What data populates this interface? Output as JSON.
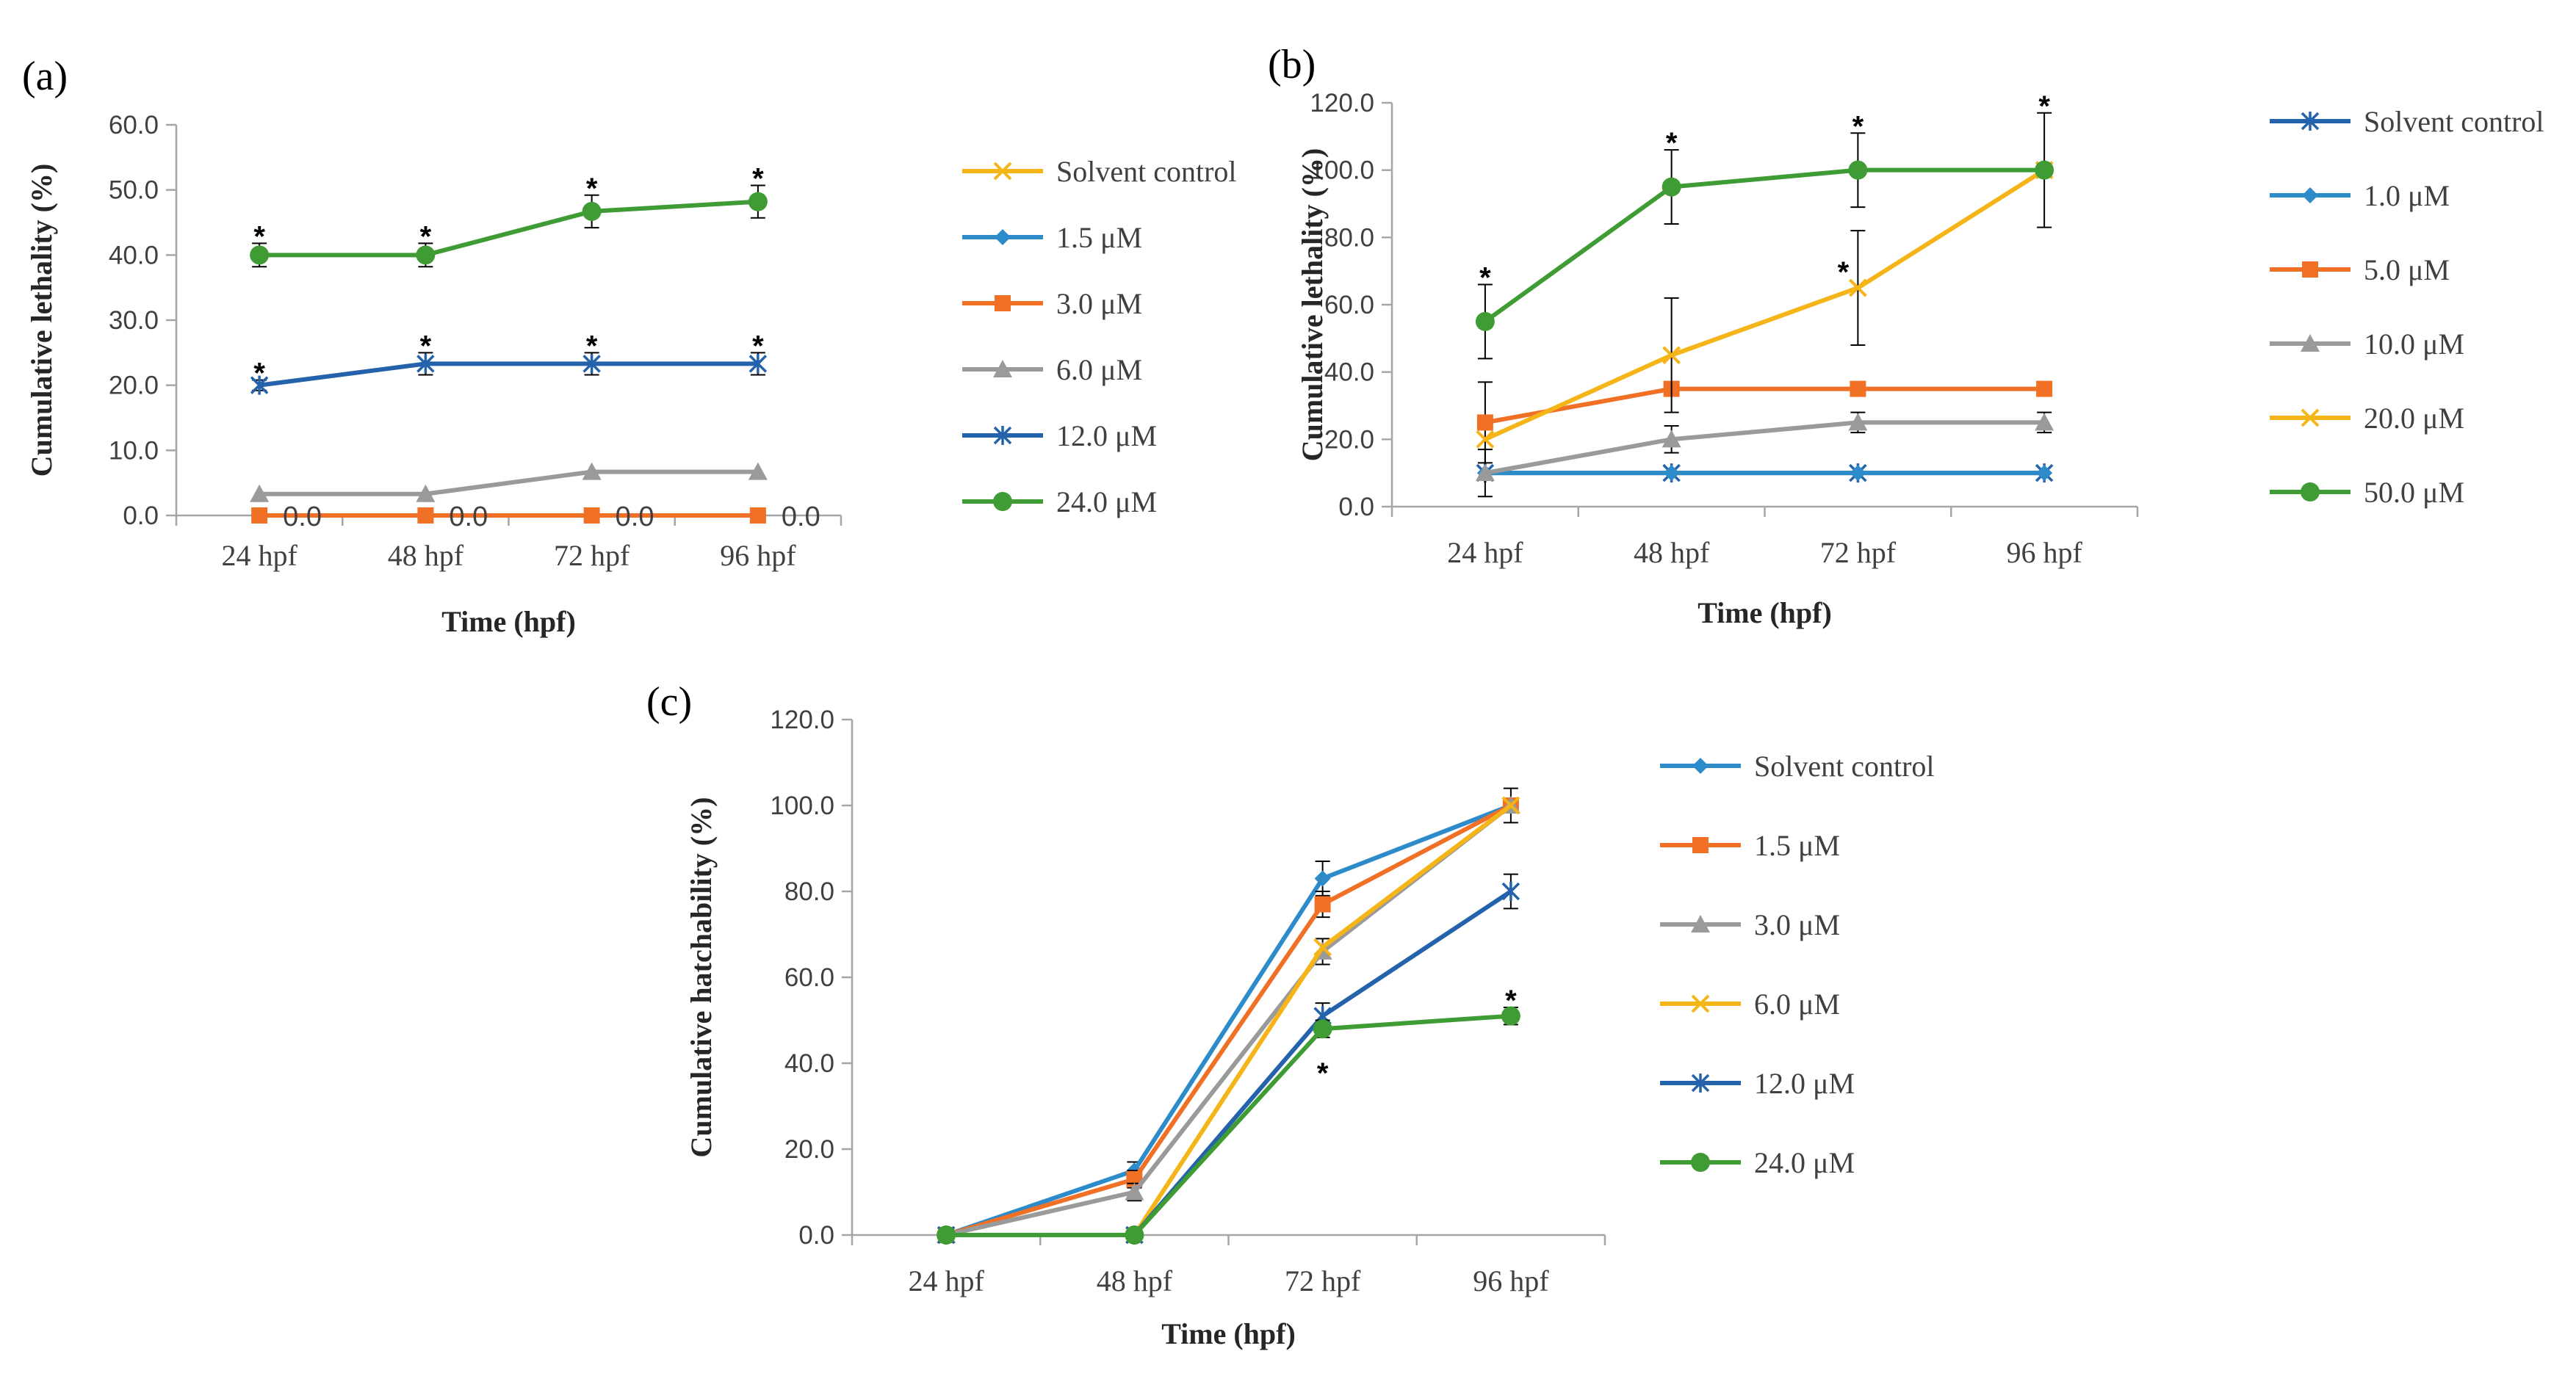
{
  "colors": {
    "yellow": "#F5B418",
    "lightblue": "#2E8BC9",
    "orange": "#F07026",
    "gray": "#9A9A9A",
    "darkblue": "#2463AB",
    "green": "#3F9C35"
  },
  "chart_data": [
    {
      "panel_label": "(a)",
      "type": "line",
      "ylabel": "Cumulative lethality (%)",
      "xlabel": "Time (hpf)",
      "categories": [
        "24 hpf",
        "48 hpf",
        "72 hpf",
        "96 hpf"
      ],
      "ylim": [
        0,
        60
      ],
      "yticks": [
        "0.0",
        "10.0",
        "20.0",
        "30.0",
        "40.0",
        "50.0",
        "60.0"
      ],
      "series": [
        {
          "name": "Solvent control",
          "color": "yellow",
          "marker": "x",
          "values": [
            0,
            0,
            0,
            0
          ],
          "errors": [
            0,
            0,
            0,
            0
          ],
          "stars": [
            false,
            false,
            false,
            false
          ],
          "show": false
        },
        {
          "name": "1.5 μM",
          "color": "lightblue",
          "marker": "diamond",
          "values": [
            0,
            0,
            0,
            0
          ],
          "errors": [
            0,
            0,
            0,
            0
          ],
          "stars": [
            false,
            false,
            false,
            false
          ],
          "show": false
        },
        {
          "name": "3.0 μM",
          "color": "orange",
          "marker": "square",
          "values": [
            0,
            0,
            0,
            0
          ],
          "errors": [
            0,
            0,
            0,
            0
          ],
          "stars": [
            false,
            false,
            false,
            false
          ],
          "show": true
        },
        {
          "name": "6.0 μM",
          "color": "gray",
          "marker": "triangle",
          "values": [
            3.3,
            3.3,
            6.7,
            6.7
          ],
          "errors": [
            0,
            0,
            0,
            0
          ],
          "stars": [
            false,
            false,
            false,
            false
          ],
          "show": true
        },
        {
          "name": "12.0 μM",
          "color": "darkblue",
          "marker": "asterisk",
          "values": [
            20.0,
            23.3,
            23.3,
            23.3
          ],
          "errors": [
            0.8,
            1.7,
            1.7,
            1.7
          ],
          "stars": [
            true,
            true,
            true,
            true
          ],
          "show": true
        },
        {
          "name": "24.0 μM",
          "color": "green",
          "marker": "circle",
          "values": [
            40.0,
            40.0,
            46.7,
            48.2
          ],
          "errors": [
            1.8,
            1.8,
            2.5,
            2.5
          ],
          "stars": [
            true,
            true,
            true,
            true
          ],
          "show": true
        }
      ],
      "data_labels": [
        "0.0",
        "0.0",
        "0.0",
        "0.0"
      ]
    },
    {
      "panel_label": "(b)",
      "type": "line",
      "ylabel": "Cumulative lethality (%)",
      "xlabel": "Time (hpf)",
      "categories": [
        "24 hpf",
        "48 hpf",
        "72 hpf",
        "96 hpf"
      ],
      "ylim": [
        0,
        120
      ],
      "yticks": [
        "0.0",
        "20.0",
        "40.0",
        "60.0",
        "80.0",
        "100.0",
        "120.0"
      ],
      "series": [
        {
          "name": "Solvent control",
          "color": "darkblue",
          "marker": "asterisk",
          "values": [
            10,
            10,
            10,
            10
          ],
          "errors": [
            0,
            0,
            0,
            0
          ],
          "stars": [
            false,
            false,
            false,
            false
          ],
          "show": true
        },
        {
          "name": "1.0 μM",
          "color": "lightblue",
          "marker": "diamond",
          "values": [
            10,
            10,
            10,
            10
          ],
          "errors": [
            0,
            0,
            0,
            0
          ],
          "stars": [
            false,
            false,
            false,
            false
          ],
          "show": true
        },
        {
          "name": "5.0 μM",
          "color": "orange",
          "marker": "square",
          "values": [
            25,
            35,
            35,
            35
          ],
          "errors": [
            12,
            0,
            0,
            0
          ],
          "stars": [
            false,
            false,
            false,
            false
          ],
          "show": true
        },
        {
          "name": "10.0 μM",
          "color": "gray",
          "marker": "triangle",
          "values": [
            10,
            20,
            25,
            25
          ],
          "errors": [
            7,
            4,
            3,
            3
          ],
          "stars": [
            false,
            false,
            false,
            false
          ],
          "show": true
        },
        {
          "name": "20.0 μM",
          "color": "yellow",
          "marker": "x",
          "values": [
            20,
            45,
            65,
            100
          ],
          "errors": [
            0,
            17,
            17,
            0
          ],
          "stars": [
            false,
            false,
            true,
            false
          ],
          "show": true
        },
        {
          "name": "50.0 μM",
          "color": "green",
          "marker": "circle",
          "values": [
            55,
            95,
            100,
            100
          ],
          "errors": [
            11,
            11,
            11,
            17
          ],
          "stars": [
            true,
            true,
            true,
            true
          ],
          "show": true
        }
      ]
    },
    {
      "panel_label": "(c)",
      "type": "line",
      "ylabel": "Cumulative hatchability (%)",
      "xlabel": "Time (hpf)",
      "categories": [
        "24 hpf",
        "48 hpf",
        "72 hpf",
        "96 hpf"
      ],
      "ylim": [
        0,
        120
      ],
      "yticks": [
        "0.0",
        "20.0",
        "40.0",
        "60.0",
        "80.0",
        "100.0",
        "120.0"
      ],
      "series": [
        {
          "name": "Solvent control",
          "color": "lightblue",
          "marker": "diamond",
          "values": [
            0,
            15,
            83,
            100
          ],
          "errors": [
            0,
            2,
            4,
            4
          ],
          "stars": [
            false,
            false,
            false,
            false
          ],
          "show": true
        },
        {
          "name": "1.5 μM",
          "color": "orange",
          "marker": "square",
          "values": [
            0,
            13,
            77,
            100
          ],
          "errors": [
            0,
            2,
            3,
            0
          ],
          "stars": [
            false,
            false,
            false,
            false
          ],
          "show": true
        },
        {
          "name": "3.0 μM",
          "color": "gray",
          "marker": "triangle",
          "values": [
            0,
            10,
            66,
            100
          ],
          "errors": [
            0,
            2,
            3,
            0
          ],
          "stars": [
            false,
            false,
            false,
            false
          ],
          "show": true
        },
        {
          "name": "6.0 μM",
          "color": "yellow",
          "marker": "x",
          "values": [
            0,
            0,
            67,
            100
          ],
          "errors": [
            0,
            0,
            0,
            0
          ],
          "stars": [
            false,
            false,
            false,
            false
          ],
          "show": true
        },
        {
          "name": "12.0 μM",
          "color": "darkblue",
          "marker": "asterisk",
          "values": [
            0,
            0,
            51,
            80
          ],
          "errors": [
            0,
            0,
            3,
            4
          ],
          "stars": [
            false,
            false,
            false,
            false
          ],
          "show": true
        },
        {
          "name": "24.0 μM",
          "color": "green",
          "marker": "circle",
          "values": [
            0,
            0,
            48,
            51
          ],
          "errors": [
            0,
            0,
            2,
            2
          ],
          "stars": [
            false,
            false,
            true,
            true
          ],
          "show": true
        }
      ]
    }
  ]
}
